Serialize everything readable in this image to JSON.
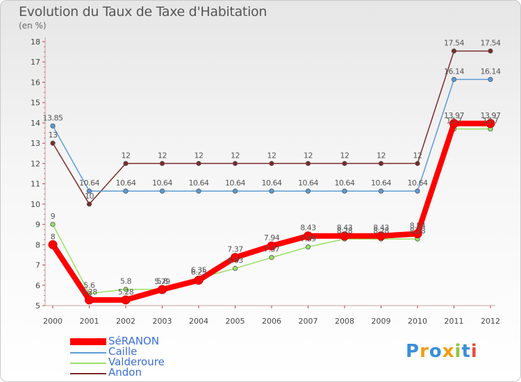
{
  "title": "Evolution du Taux de Taxe d'Habitation",
  "subtitle": "(en %)",
  "chart_data": {
    "type": "line",
    "title": "Evolution du Taux de Taxe d'Habitation",
    "ylabel": "(en %)",
    "xlabel": "",
    "x": [
      "2000",
      "2001",
      "2002",
      "2003",
      "2004",
      "2005",
      "2006",
      "2007",
      "2008",
      "2009",
      "2010",
      "2011",
      "2012"
    ],
    "yticks": [
      "5",
      "6",
      "7",
      "8",
      "9",
      "10",
      "11",
      "12",
      "13",
      "14",
      "15",
      "16",
      "17",
      "18"
    ],
    "ylim": [
      5,
      18
    ],
    "series": [
      {
        "name": "SéRANON",
        "color": "#ff0000",
        "values": [
          8,
          5.28,
          5.28,
          5.79,
          6.25,
          7.37,
          7.94,
          8.43,
          8.43,
          8.43,
          8.54,
          13.97,
          13.97
        ],
        "labels": [
          "8",
          "5.28",
          "5.28",
          "5.79",
          "6.25",
          "7.37",
          "7.94",
          "8.43",
          "8.43",
          "8.43",
          "8.54",
          "13.97",
          "13.97"
        ]
      },
      {
        "name": "Caille",
        "color": "#5b9bd5",
        "values": [
          13.85,
          10.64,
          10.64,
          10.64,
          10.64,
          10.64,
          10.64,
          10.64,
          10.64,
          10.64,
          10.64,
          16.14,
          16.14
        ],
        "labels": [
          "13.85",
          "10.64",
          "10.64",
          "10.64",
          "10.64",
          "10.64",
          "10.64",
          "10.64",
          "10.64",
          "10.64",
          "10.64",
          "16.14",
          "16.14"
        ]
      },
      {
        "name": "Valderoure",
        "color": "#99e066",
        "values": [
          9,
          5.6,
          5.8,
          5.8,
          6.35,
          6.83,
          7.37,
          7.89,
          8.28,
          8.28,
          8.28,
          13.7,
          13.7
        ],
        "labels": [
          "9",
          "5.6",
          "5.8",
          "5.8",
          "6.35",
          "6.83",
          "7.37",
          "7.89",
          "8.28",
          "8.28",
          "8.28",
          "13.7",
          "13.7"
        ]
      },
      {
        "name": "Andon",
        "color": "#7b2a2a",
        "values": [
          13,
          10,
          12,
          12,
          12,
          12,
          12,
          12,
          12,
          12,
          12,
          17.54,
          17.54
        ],
        "labels": [
          "13",
          "10",
          "12",
          "12",
          "12",
          "12",
          "12",
          "12",
          "12",
          "12",
          "12",
          "17.54",
          "17.54"
        ]
      }
    ],
    "legend_position": "bottom-left",
    "grid": false
  },
  "legend": [
    {
      "label": "SéRANON",
      "color": "#ff0000"
    },
    {
      "label": "Caille",
      "color": "#5b9bd5"
    },
    {
      "label": "Valderoure",
      "color": "#99e066"
    },
    {
      "label": "Andon",
      "color": "#7b2a2a"
    }
  ],
  "logo": {
    "letters": [
      "P",
      "r",
      "o",
      "x",
      "i",
      "t",
      "i"
    ],
    "colors": [
      "#3a8fd8",
      "#f39c12",
      "#3a8fd8",
      "#f39c12",
      "#8cc63f",
      "#3a8fd8",
      "#e84c3d"
    ]
  }
}
